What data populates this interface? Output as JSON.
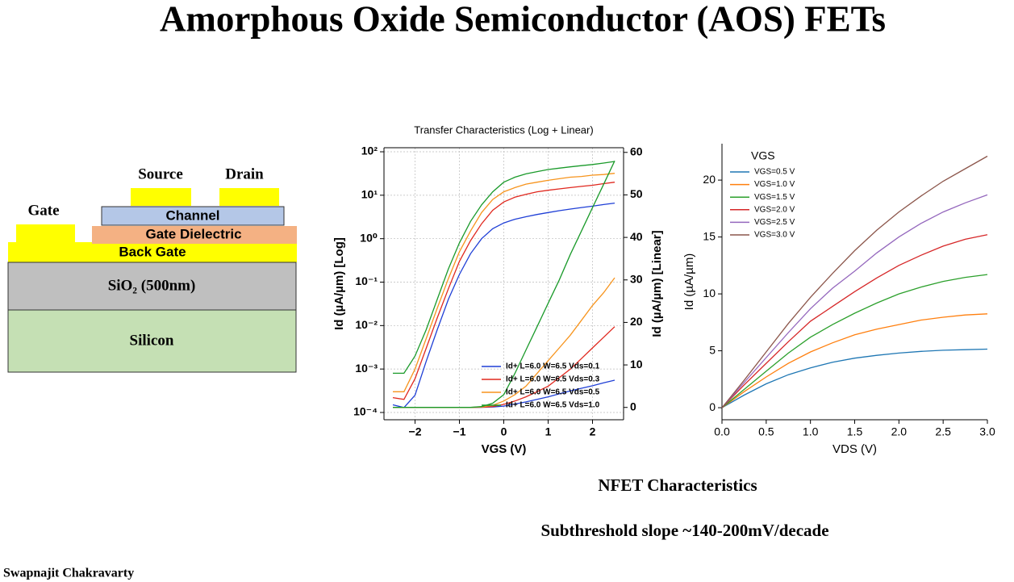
{
  "header": {
    "title": "Amorphous Oxide Semiconductor (AOS) FETs"
  },
  "diagram": {
    "gate": "Gate",
    "source": "Source",
    "drain": "Drain",
    "channel": "Channel",
    "gate_dielectric": "Gate Dielectric",
    "back_gate": "Back Gate",
    "oxide": "SiO₂ (500nm)",
    "substrate": "Silicon"
  },
  "captions": [
    "NFET Characteristics",
    "Subthreshold slope ~140-200mV/decade"
  ],
  "author": "Swapnajit Chakravarty",
  "chart_data": [
    {
      "type": "line",
      "title": "Transfer Characteristics (Log + Linear)",
      "x_label": "VGS (V)",
      "y_label": "Id (µA/µm) [Log]",
      "y2_label": "Id (µA/µm) [Linear]",
      "yscale": "log",
      "grid": true,
      "legend": "lower right",
      "xlim": [
        -2.7,
        2.7
      ],
      "xticks": [
        {
          "value": -2,
          "label": "−2"
        },
        {
          "value": -1,
          "label": "−1"
        },
        0,
        1,
        2
      ],
      "ylim": [
        6.8e-05,
        124
      ],
      "yticks": [
        {
          "value": 0.0001,
          "label": "10⁻⁴"
        },
        {
          "value": 0.001,
          "label": "10⁻³"
        },
        {
          "value": 0.01,
          "label": "10⁻²"
        },
        {
          "value": 0.1,
          "label": "10⁻¹"
        },
        {
          "value": 1,
          "label": "10⁰"
        },
        {
          "value": 10,
          "label": "10¹"
        },
        {
          "value": 100,
          "label": "10²"
        }
      ],
      "y2lim": [
        -2.9,
        61.1
      ],
      "y2ticks": [
        0,
        10,
        20,
        30,
        40,
        50,
        60
      ],
      "x": [
        -2.5,
        -2.25,
        -2,
        -1.75,
        -1.5,
        -1.25,
        -1,
        -0.75,
        -0.5,
        -0.25,
        0,
        0.25,
        0.5,
        0.75,
        1,
        1.25,
        1.5,
        1.75,
        2,
        2.25,
        2.5
      ],
      "series": [
        {
          "name": "Id+ L=6.0 W=6.5 Vds=0.1",
          "color": "#1f3fd6",
          "values": [
            0.00015,
            0.00013,
            0.00025,
            0.0015,
            0.008,
            0.04,
            0.15,
            0.45,
            1.0,
            1.7,
            2.3,
            2.8,
            3.2,
            3.6,
            4.0,
            4.4,
            4.8,
            5.2,
            5.6,
            6.1,
            6.6
          ]
        },
        {
          "name": "Id+ L=6.0 W=6.5 Vds=0.3",
          "color": "#e0281e",
          "values": [
            0.00022,
            0.0002,
            0.0006,
            0.003,
            0.015,
            0.07,
            0.3,
            0.9,
            2.2,
            4.5,
            7,
            9,
            10.5,
            12,
            13,
            14,
            15,
            16,
            17,
            18.5,
            20
          ]
        },
        {
          "name": "Id+ L=6.0 W=6.5 Vds=0.5",
          "color": "#f7941d",
          "values": [
            0.0003,
            0.0003,
            0.001,
            0.005,
            0.025,
            0.12,
            0.5,
            1.5,
            4,
            8,
            12,
            15,
            18,
            20,
            22,
            24,
            26,
            27,
            29,
            30,
            32
          ]
        },
        {
          "name": "Id+ L=6.0 W=6.5 Vds=1.0",
          "color": "#1a9a2a",
          "values": [
            0.0008,
            0.0008,
            0.002,
            0.008,
            0.04,
            0.2,
            0.8,
            2.5,
            6,
            12,
            20,
            26,
            31,
            35,
            39,
            42,
            45,
            48,
            51,
            55,
            60
          ]
        },
        {
          "axis": "y2",
          "color": "#1f3fd6",
          "values": [
            0,
            0,
            0,
            0,
            0,
            0,
            0,
            0,
            0.02,
            0.1,
            0.3,
            0.8,
            1.3,
            1.9,
            2.5,
            3.2,
            3.9,
            4.5,
            5.1,
            5.8,
            6.4
          ]
        },
        {
          "axis": "y2",
          "color": "#e0281e",
          "values": [
            0,
            0,
            0,
            0,
            0,
            0,
            0,
            0,
            0.05,
            0.2,
            0.7,
            1.5,
            2.5,
            3.7,
            5,
            7,
            9,
            11.5,
            14,
            16.5,
            19
          ]
        },
        {
          "axis": "y2",
          "color": "#f7941d",
          "values": [
            0,
            0,
            0,
            0,
            0,
            0,
            0,
            0,
            0.1,
            0.5,
            1.5,
            3,
            5,
            8,
            11,
            14,
            17,
            20.5,
            24,
            27,
            30.5
          ]
        },
        {
          "axis": "y2",
          "color": "#1a9a2a",
          "values": [
            0,
            0,
            0,
            0,
            0,
            0,
            0,
            0,
            0.2,
            1,
            3,
            8,
            13.5,
            19,
            24.5,
            30,
            36,
            41.5,
            47,
            52.5,
            58
          ]
        }
      ]
    },
    {
      "type": "line",
      "x_label": "VDS (V)",
      "y_label": "Id (µA/µm)",
      "legend_title": "VGS",
      "legend": "upper left",
      "xlim": [
        0,
        3
      ],
      "xticks": [
        {
          "value": 0,
          "label": "0.0"
        },
        {
          "value": 0.5,
          "label": "0.5"
        },
        {
          "value": 1,
          "label": "1.0"
        },
        {
          "value": 1.5,
          "label": "1.5"
        },
        {
          "value": 2,
          "label": "2.0"
        },
        {
          "value": 2.5,
          "label": "2.5"
        },
        {
          "value": 3,
          "label": "3.0"
        }
      ],
      "ylim": [
        -1.06,
        23.2
      ],
      "yticks": [
        0,
        5,
        10,
        15,
        20
      ],
      "x": [
        0,
        0.25,
        0.5,
        0.75,
        1,
        1.25,
        1.5,
        1.75,
        2,
        2.25,
        2.5,
        2.75,
        3
      ],
      "series": [
        {
          "name": "VGS=0.5 V",
          "color": "#1f77b4",
          "values": [
            0,
            1.1,
            2.1,
            2.9,
            3.5,
            4.0,
            4.35,
            4.6,
            4.8,
            4.95,
            5.05,
            5.1,
            5.15
          ]
        },
        {
          "name": "VGS=1.0 V",
          "color": "#ff7f0e",
          "values": [
            0,
            1.4,
            2.7,
            3.9,
            4.9,
            5.7,
            6.4,
            6.9,
            7.3,
            7.7,
            7.95,
            8.15,
            8.25
          ]
        },
        {
          "name": "VGS=1.5 V",
          "color": "#2ca02c",
          "values": [
            0,
            1.6,
            3.2,
            4.8,
            6.2,
            7.3,
            8.3,
            9.2,
            10.0,
            10.6,
            11.1,
            11.45,
            11.7
          ]
        },
        {
          "name": "VGS=2.0 V",
          "color": "#d62728",
          "values": [
            0,
            2.0,
            3.9,
            5.8,
            7.6,
            8.9,
            10.2,
            11.4,
            12.5,
            13.4,
            14.2,
            14.8,
            15.2
          ]
        },
        {
          "name": "VGS=2.5 V",
          "color": "#9467bd",
          "values": [
            0,
            2.2,
            4.4,
            6.6,
            8.7,
            10.5,
            12.0,
            13.6,
            15.0,
            16.2,
            17.2,
            18.0,
            18.7
          ]
        },
        {
          "name": "VGS=3.0 V",
          "color": "#8c564b",
          "values": [
            0,
            2.4,
            4.9,
            7.4,
            9.7,
            11.8,
            13.8,
            15.6,
            17.2,
            18.6,
            19.9,
            21.0,
            22.1
          ]
        }
      ]
    }
  ]
}
